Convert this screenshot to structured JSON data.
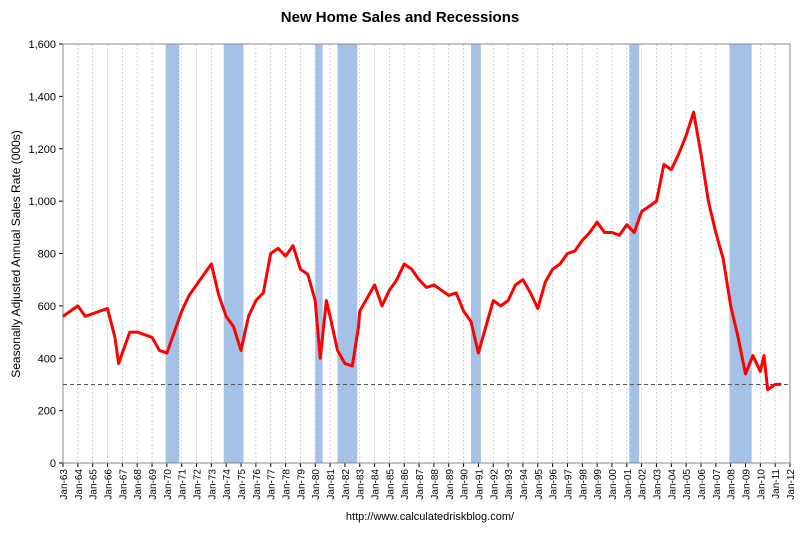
{
  "chart_data": {
    "type": "line",
    "title": "New Home Sales and Recessions",
    "y_label": "Seasonally Adjusted Annual Sales Rate (000s)",
    "source": "http://www.calculatedriskblog.com/",
    "series": [
      {
        "name": "New Home Sales",
        "color": "#ff0000",
        "x": [
          "Jan-63",
          "Jul-63",
          "Jan-64",
          "Jul-64",
          "Jan-65",
          "Jul-65",
          "Jan-66",
          "Jul-66",
          "Oct-66",
          "Jan-67",
          "Jul-67",
          "Jan-68",
          "Jul-68",
          "Jan-69",
          "Jul-69",
          "Jan-70",
          "Jul-70",
          "Jan-71",
          "Jul-71",
          "Jan-72",
          "Jul-72",
          "Jan-73",
          "Jul-73",
          "Jan-74",
          "Jul-74",
          "Jan-75",
          "Jul-75",
          "Jan-76",
          "Jul-76",
          "Jan-77",
          "Jul-77",
          "Jan-78",
          "Jul-78",
          "Jan-79",
          "Jul-79",
          "Jan-80",
          "May-80",
          "Oct-80",
          "Jan-81",
          "Jul-81",
          "Jan-82",
          "Jul-82",
          "Dec-82",
          "Jan-83",
          "Jul-83",
          "Jan-84",
          "Jul-84",
          "Jan-85",
          "Jul-85",
          "Jan-86",
          "Jul-86",
          "Jan-87",
          "Jul-87",
          "Jan-88",
          "Jul-88",
          "Jan-89",
          "Jul-89",
          "Jan-90",
          "Jul-90",
          "Jan-91",
          "Jul-91",
          "Jan-92",
          "Jul-92",
          "Jan-93",
          "Jul-93",
          "Jan-94",
          "Jul-94",
          "Jan-95",
          "Jul-95",
          "Jan-96",
          "Jul-96",
          "Jan-97",
          "Jul-97",
          "Jan-98",
          "Jul-98",
          "Jan-99",
          "Jul-99",
          "Jan-00",
          "Jul-00",
          "Jan-01",
          "Jul-01",
          "Jan-02",
          "Jul-02",
          "Jan-03",
          "Jul-03",
          "Jan-04",
          "Jul-04",
          "Jan-05",
          "Jul-05",
          "Jan-06",
          "Jul-06",
          "Jan-07",
          "Jul-07",
          "Jan-08",
          "Jul-08",
          "Jan-09",
          "Jul-09",
          "Jan-10",
          "Apr-10",
          "Jul-10",
          "Jan-11",
          "Jun-11"
        ],
        "values": [
          560,
          580,
          600,
          560,
          570,
          580,
          590,
          480,
          380,
          420,
          500,
          500,
          490,
          480,
          430,
          420,
          500,
          580,
          640,
          680,
          720,
          760,
          640,
          560,
          520,
          430,
          560,
          620,
          650,
          800,
          820,
          790,
          830,
          740,
          720,
          620,
          400,
          620,
          560,
          430,
          380,
          370,
          520,
          580,
          630,
          680,
          600,
          660,
          700,
          760,
          740,
          700,
          670,
          680,
          660,
          640,
          650,
          580,
          540,
          420,
          520,
          620,
          600,
          620,
          680,
          700,
          650,
          590,
          690,
          740,
          760,
          800,
          810,
          850,
          880,
          920,
          880,
          880,
          870,
          910,
          880,
          960,
          980,
          1000,
          1140,
          1120,
          1180,
          1250,
          1340,
          1180,
          1000,
          880,
          780,
          600,
          480,
          340,
          410,
          350,
          410,
          280,
          300,
          300
        ]
      }
    ],
    "recessions": [
      [
        "Dec-69",
        "Nov-70"
      ],
      [
        "Nov-73",
        "Mar-75"
      ],
      [
        "Jan-80",
        "Jul-80"
      ],
      [
        "Jul-81",
        "Nov-82"
      ],
      [
        "Jul-90",
        "Mar-91"
      ],
      [
        "Mar-01",
        "Nov-01"
      ],
      [
        "Dec-07",
        "Jun-09"
      ]
    ],
    "recession_color": "#a4c2e8",
    "reference_line": 300,
    "xlim": [
      "Jan-63",
      "Jan-12"
    ],
    "xticks": [
      "Jan-63",
      "Jan-64",
      "Jan-65",
      "Jan-66",
      "Jan-67",
      "Jan-68",
      "Jan-69",
      "Jan-70",
      "Jan-71",
      "Jan-72",
      "Jan-73",
      "Jan-74",
      "Jan-75",
      "Jan-76",
      "Jan-77",
      "Jan-78",
      "Jan-79",
      "Jan-80",
      "Jan-81",
      "Jan-82",
      "Jan-83",
      "Jan-84",
      "Jan-85",
      "Jan-86",
      "Jan-87",
      "Jan-88",
      "Jan-89",
      "Jan-90",
      "Jan-91",
      "Jan-92",
      "Jan-93",
      "Jan-94",
      "Jan-95",
      "Jan-96",
      "Jan-97",
      "Jan-98",
      "Jan-99",
      "Jan-00",
      "Jan-01",
      "Jan-02",
      "Jan-03",
      "Jan-04",
      "Jan-05",
      "Jan-06",
      "Jan-07",
      "Jan-08",
      "Jan-09",
      "Jan-10",
      "Jan-11",
      "Jan-12"
    ],
    "ylim": [
      0,
      1600
    ],
    "yticks": [
      0,
      200,
      400,
      600,
      800,
      {
        "value": 1000,
        "label": "1,000"
      },
      {
        "value": 1200,
        "label": "1,200"
      },
      {
        "value": 1400,
        "label": "1,400"
      },
      {
        "value": 1600,
        "label": "1,600"
      }
    ],
    "grid": true
  }
}
